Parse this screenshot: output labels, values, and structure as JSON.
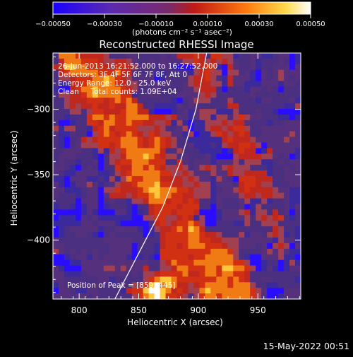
{
  "colorbar": {
    "tick_labels": [
      "−0.00050",
      "−0.00030",
      "−0.00010",
      "0.00010",
      "0.00030",
      "0.00050"
    ],
    "tick_values": [
      -0.0005,
      -0.0003,
      -0.0001,
      0.0001,
      0.0003,
      0.0005
    ],
    "range": [
      -0.0005,
      0.0005
    ],
    "unit_label": "(photons cm⁻² s⁻¹ asec⁻²)"
  },
  "chart_data": {
    "type": "heatmap",
    "title": "Reconstructed RHESSI Image",
    "xlabel": "Heliocentric X (arcsec)",
    "ylabel": "Heliocentric Y (arcsec)",
    "xlim": [
      778,
      986
    ],
    "ylim": [
      -445,
      -257
    ],
    "x_ticks": [
      800,
      850,
      900,
      950
    ],
    "x_tick_labels": [
      "800",
      "850",
      "900",
      "950"
    ],
    "y_ticks": [
      -300,
      -350,
      -400
    ],
    "y_tick_labels": [
      "−300",
      "−350",
      "−400"
    ],
    "annotations": [
      "26-Jun-2013 16:21:52.000 to 16:27:52.000",
      "Detectors: 3F 4F 5F 6F 7F 8F, Att 0",
      "Energy Range: 12.0 - 25.0 keV",
      "Clean     Total counts: 1.09E+04"
    ],
    "peak_label": "Position of Peak = [859,-445]",
    "peak_position": [
      859,
      -445
    ],
    "limb_arc_points": [
      [
        830,
        -445
      ],
      [
        850,
        -410
      ],
      [
        870,
        -375
      ],
      [
        885,
        -340
      ],
      [
        898,
        -300
      ],
      [
        907,
        -257
      ]
    ],
    "colormap": [
      "#2a0dff",
      "#3b2a9c",
      "#4b2f80",
      "#55307d",
      "#a04050",
      "#c0281e",
      "#d23012",
      "#f07a14",
      "#ffc83c",
      "#ffffff"
    ]
  },
  "timestamp": "15-May-2022 00:51"
}
